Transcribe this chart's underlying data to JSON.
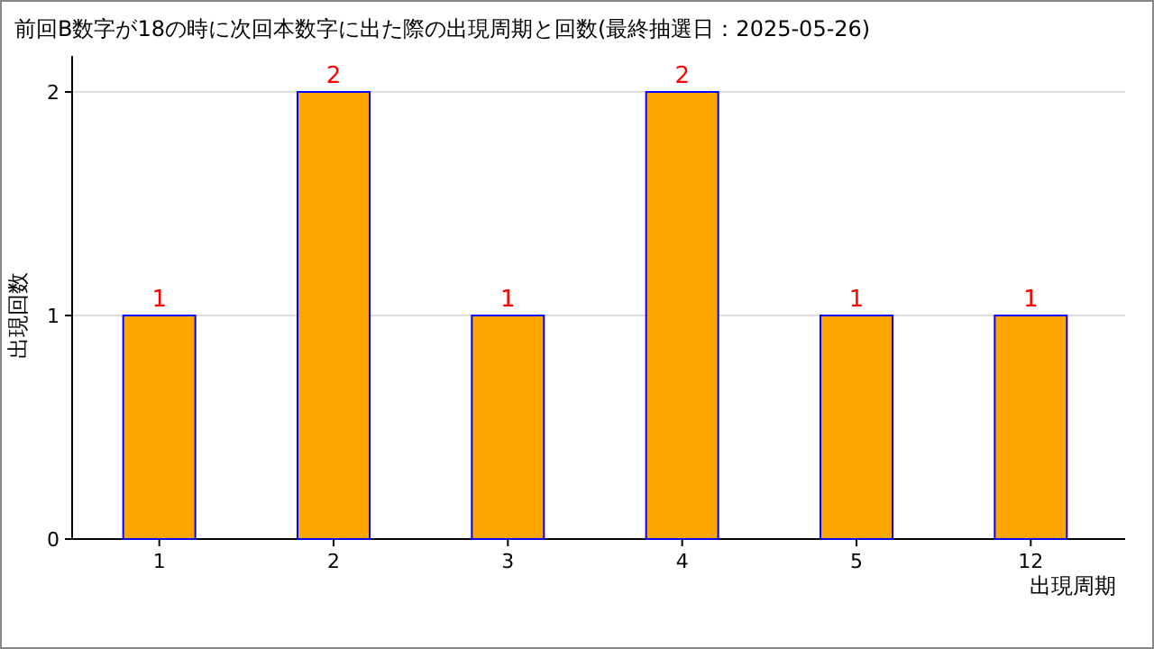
{
  "chart_data": {
    "type": "bar",
    "title": "前回B数字が18の時に次回本数字に出た際の出現周期と回数(最終抽選日：2025-05-26)",
    "categories": [
      "1",
      "2",
      "3",
      "4",
      "5",
      "12"
    ],
    "values": [
      1,
      2,
      1,
      2,
      1,
      1
    ],
    "color": "#ffa500",
    "xlabel": "出現周期",
    "ylabel": "出現回数",
    "ylim": [
      0,
      2
    ],
    "yticks": [
      0,
      1,
      2
    ],
    "grid": "y",
    "data_labels": true
  }
}
